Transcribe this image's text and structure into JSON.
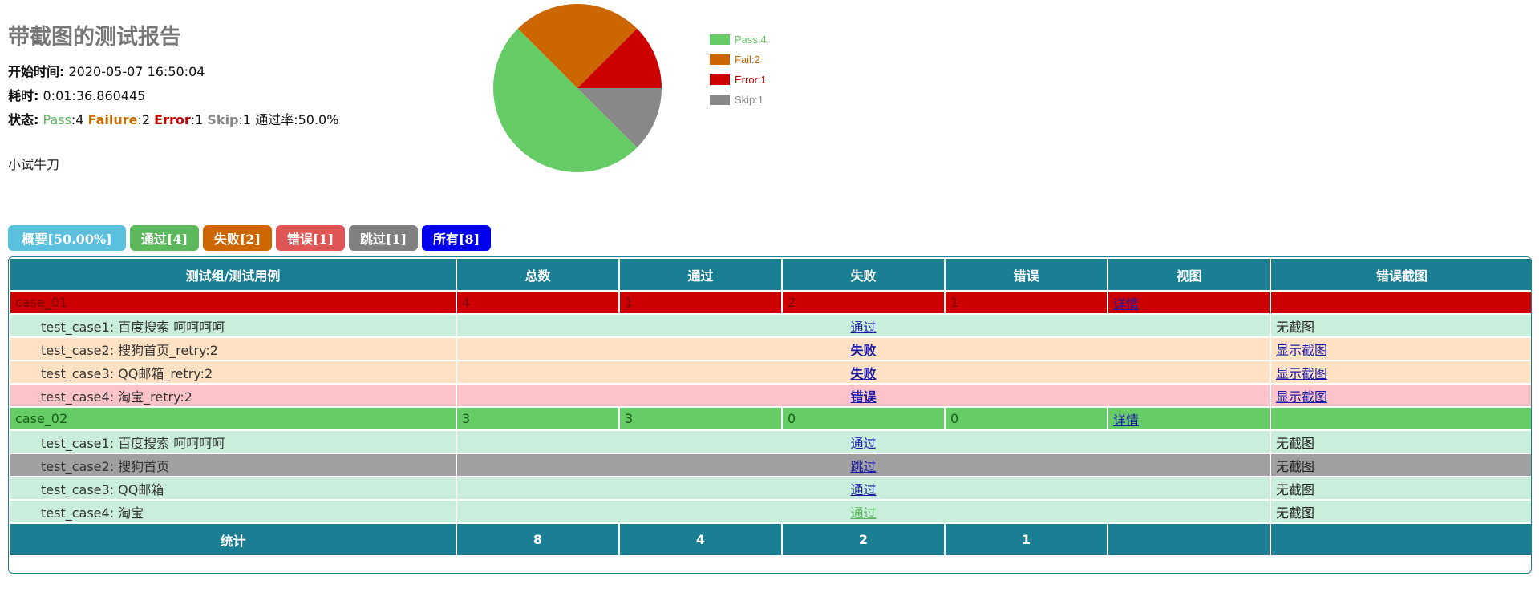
{
  "header": {
    "title": "带截图的测试报告",
    "start_label": "开始时间:",
    "start_value": "2020-05-07 16:50:04",
    "duration_label": "耗时:",
    "duration_value": "0:01:36.860445",
    "status_label": "状态:",
    "pass_label": "Pass",
    "pass_value": ":4",
    "failure_label": "Failure",
    "failure_value": ":2",
    "error_label": "Error",
    "error_value": ":1",
    "skip_label": "Skip",
    "skip_value": ":1",
    "rate_text": "通过率:50.0%",
    "description": "小试牛刀"
  },
  "chart_data": {
    "type": "pie",
    "title": "",
    "slices": [
      {
        "label": "Pass:4",
        "value": 4,
        "color": "#66cc66"
      },
      {
        "label": "Fail:2",
        "value": 2,
        "color": "#cc6600"
      },
      {
        "label": "Error:1",
        "value": 1,
        "color": "#cc0000"
      },
      {
        "label": "Skip:1",
        "value": 1,
        "color": "#888888"
      }
    ],
    "legend_position": "right"
  },
  "filters": [
    {
      "label": "概要[50.00%]",
      "color": "#5bc0de"
    },
    {
      "label": "通过[4]",
      "color": "#5cb85c"
    },
    {
      "label": "失败[2]",
      "color": "#cc6600"
    },
    {
      "label": "错误[1]",
      "color": "#e05555"
    },
    {
      "label": "跳过[1]",
      "color": "#808080"
    },
    {
      "label": "所有[8]",
      "color": "#0000ee"
    }
  ],
  "table": {
    "headers": [
      "测试组/测试用例",
      "总数",
      "通过",
      "失败",
      "错误",
      "视图",
      "错误截图"
    ],
    "groups": [
      {
        "name": "case_01",
        "total": "4",
        "pass": "1",
        "fail": "2",
        "error": "1",
        "view": "详情",
        "status": "fail",
        "cases": [
          {
            "name": "test_case1: 百度搜索 呵呵呵呵",
            "result": "通过",
            "status": "pass",
            "shot": "无截图",
            "shot_link": false
          },
          {
            "name": "test_case2: 搜狗首页_retry:2",
            "result": "失败",
            "status": "fail",
            "shot": "显示截图",
            "shot_link": true
          },
          {
            "name": "test_case3: QQ邮箱_retry:2",
            "result": "失败",
            "status": "fail",
            "shot": "显示截图",
            "shot_link": true
          },
          {
            "name": "test_case4: 淘宝_retry:2",
            "result": "错误",
            "status": "err",
            "shot": "显示截图",
            "shot_link": true
          }
        ]
      },
      {
        "name": "case_02",
        "total": "3",
        "pass": "3",
        "fail": "0",
        "error": "0",
        "view": "详情",
        "status": "pass",
        "cases": [
          {
            "name": "test_case1: 百度搜索 呵呵呵呵",
            "result": "通过",
            "status": "pass",
            "shot": "无截图",
            "shot_link": false
          },
          {
            "name": "test_case2: 搜狗首页",
            "result": "跳过",
            "status": "skip",
            "shot": "无截图",
            "shot_link": false
          },
          {
            "name": "test_case3: QQ邮箱",
            "result": "通过",
            "status": "pass",
            "shot": "无截图",
            "shot_link": false
          },
          {
            "name": "test_case4: 淘宝",
            "result": "通过",
            "status": "pass-light",
            "shot": "无截图",
            "shot_link": false
          }
        ]
      }
    ],
    "footer": {
      "label": "统计",
      "total": "8",
      "pass": "4",
      "fail": "2",
      "error": "1"
    }
  }
}
